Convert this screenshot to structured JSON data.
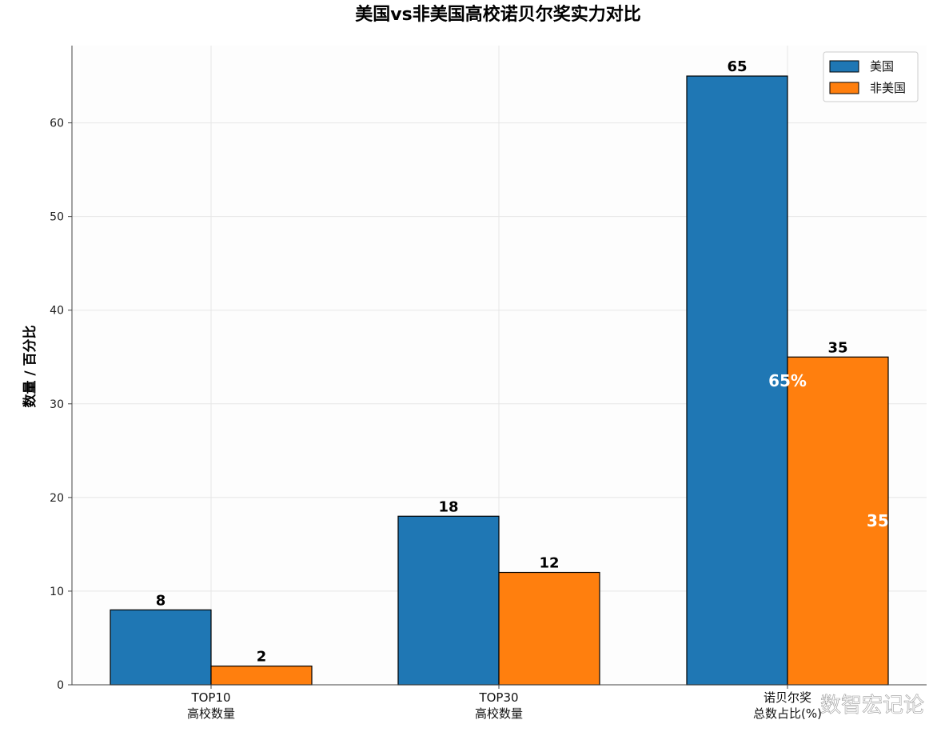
{
  "chart_data": {
    "type": "bar",
    "title": "美国vs非美国高校诺贝尔奖实力对比",
    "ylabel": "数量 / 百分比",
    "xlabel": "",
    "categories": [
      [
        "TOP10",
        "高校数量"
      ],
      [
        "TOP30",
        "高校数量"
      ],
      [
        "诺贝尔奖",
        "总数占比(%)"
      ]
    ],
    "series": [
      {
        "name": "美国",
        "values": [
          8,
          18,
          65
        ],
        "color": "#1f77b4"
      },
      {
        "name": "非美国",
        "values": [
          2,
          12,
          35
        ],
        "color": "#ff7f0e"
      }
    ],
    "ylim": [
      0,
      68.25
    ],
    "yticks": [
      0,
      10,
      20,
      30,
      40,
      50,
      60
    ],
    "grid": true,
    "legend": "top-right",
    "annotations": [
      "65%",
      "35"
    ]
  },
  "watermark": "数智宏记论"
}
